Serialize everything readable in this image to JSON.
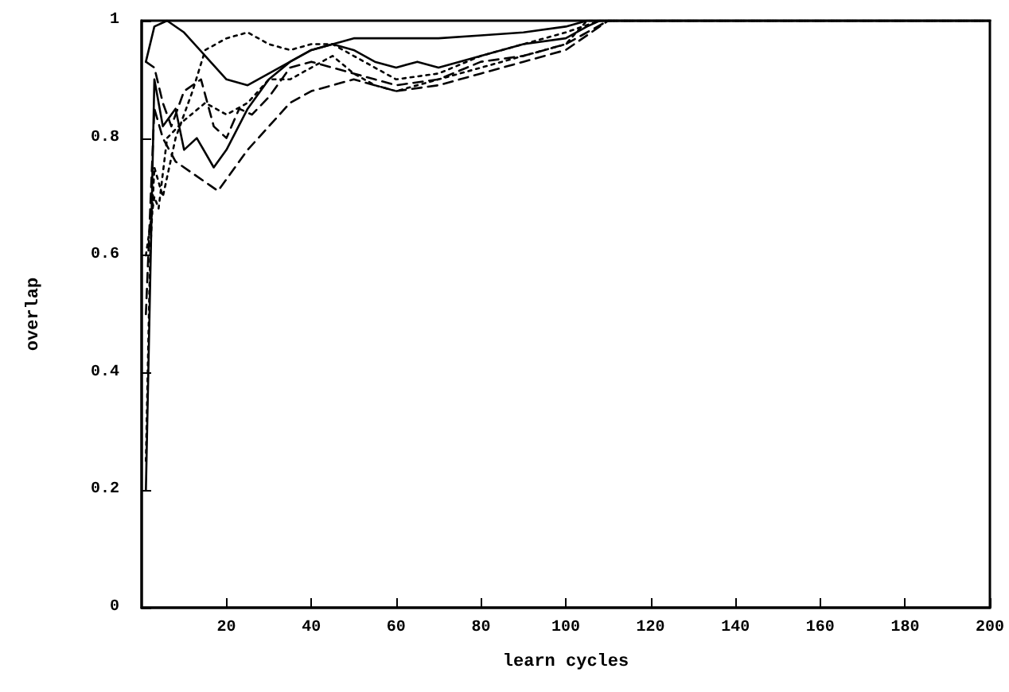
{
  "chart_data": {
    "type": "line",
    "xlabel": "learn cycles",
    "ylabel": "overlap",
    "xlim": [
      0,
      200
    ],
    "xticks": [
      20,
      40,
      60,
      80,
      100,
      120,
      140,
      160,
      180,
      200
    ],
    "ylim": [
      0,
      1
    ],
    "yticks": [
      0,
      0.2,
      0.4,
      0.6,
      0.8,
      1
    ],
    "grid": false,
    "marker": "none",
    "series": [
      {
        "color": "#000000",
        "line_style": "solid",
        "x": [
          1,
          3,
          6,
          10,
          15,
          20,
          25,
          30,
          40,
          50,
          60,
          70,
          80,
          90,
          100,
          105,
          110,
          200
        ],
        "values": [
          0.93,
          0.99,
          1.0,
          0.98,
          0.94,
          0.9,
          0.89,
          0.91,
          0.95,
          0.97,
          0.97,
          0.97,
          0.975,
          0.98,
          0.99,
          1,
          1,
          1
        ]
      },
      {
        "color": "#000000",
        "line_style": "solid",
        "x": [
          1,
          3,
          5,
          8,
          10,
          13,
          17,
          20,
          25,
          30,
          35,
          40,
          45,
          50,
          55,
          60,
          65,
          70,
          80,
          90,
          100,
          105,
          108,
          200
        ],
        "values": [
          0.2,
          0.9,
          0.82,
          0.85,
          0.78,
          0.8,
          0.75,
          0.78,
          0.85,
          0.9,
          0.93,
          0.95,
          0.96,
          0.95,
          0.93,
          0.92,
          0.93,
          0.92,
          0.94,
          0.96,
          0.97,
          0.99,
          1,
          1
        ]
      },
      {
        "color": "#000000",
        "line_style": "dotted",
        "x": [
          1,
          2,
          3,
          5,
          8,
          12,
          15,
          20,
          25,
          30,
          35,
          40,
          45,
          50,
          55,
          60,
          70,
          80,
          90,
          100,
          108,
          200
        ],
        "values": [
          0.25,
          0.6,
          0.75,
          0.7,
          0.8,
          0.88,
          0.95,
          0.97,
          0.98,
          0.96,
          0.95,
          0.96,
          0.96,
          0.94,
          0.92,
          0.9,
          0.91,
          0.94,
          0.96,
          0.98,
          1,
          1
        ]
      },
      {
        "color": "#000000",
        "line_style": "dashed",
        "x": [
          1,
          3,
          5,
          7,
          10,
          14,
          17,
          20,
          23,
          26,
          30,
          35,
          40,
          45,
          50,
          55,
          60,
          70,
          80,
          90,
          100,
          110,
          200
        ],
        "values": [
          0.93,
          0.92,
          0.86,
          0.82,
          0.88,
          0.9,
          0.82,
          0.8,
          0.85,
          0.84,
          0.87,
          0.92,
          0.93,
          0.92,
          0.91,
          0.9,
          0.89,
          0.9,
          0.93,
          0.94,
          0.96,
          1,
          1
        ]
      },
      {
        "color": "#000000",
        "line_style": "dashed",
        "x": [
          1,
          3,
          5,
          8,
          12,
          16,
          18,
          20,
          25,
          30,
          35,
          40,
          45,
          50,
          55,
          60,
          70,
          80,
          90,
          100,
          110,
          200
        ],
        "values": [
          0.5,
          0.85,
          0.8,
          0.76,
          0.74,
          0.72,
          0.71,
          0.73,
          0.78,
          0.82,
          0.86,
          0.88,
          0.89,
          0.9,
          0.89,
          0.88,
          0.89,
          0.91,
          0.93,
          0.95,
          1,
          1
        ]
      },
      {
        "color": "#000000",
        "line_style": "dotted",
        "x": [
          1,
          3,
          4,
          6,
          10,
          15,
          20,
          25,
          30,
          35,
          40,
          45,
          50,
          55,
          60,
          70,
          80,
          90,
          100,
          105,
          200
        ],
        "values": [
          0.6,
          0.7,
          0.68,
          0.8,
          0.83,
          0.86,
          0.84,
          0.86,
          0.9,
          0.9,
          0.92,
          0.94,
          0.91,
          0.89,
          0.88,
          0.9,
          0.92,
          0.94,
          0.96,
          1,
          1
        ]
      }
    ]
  }
}
